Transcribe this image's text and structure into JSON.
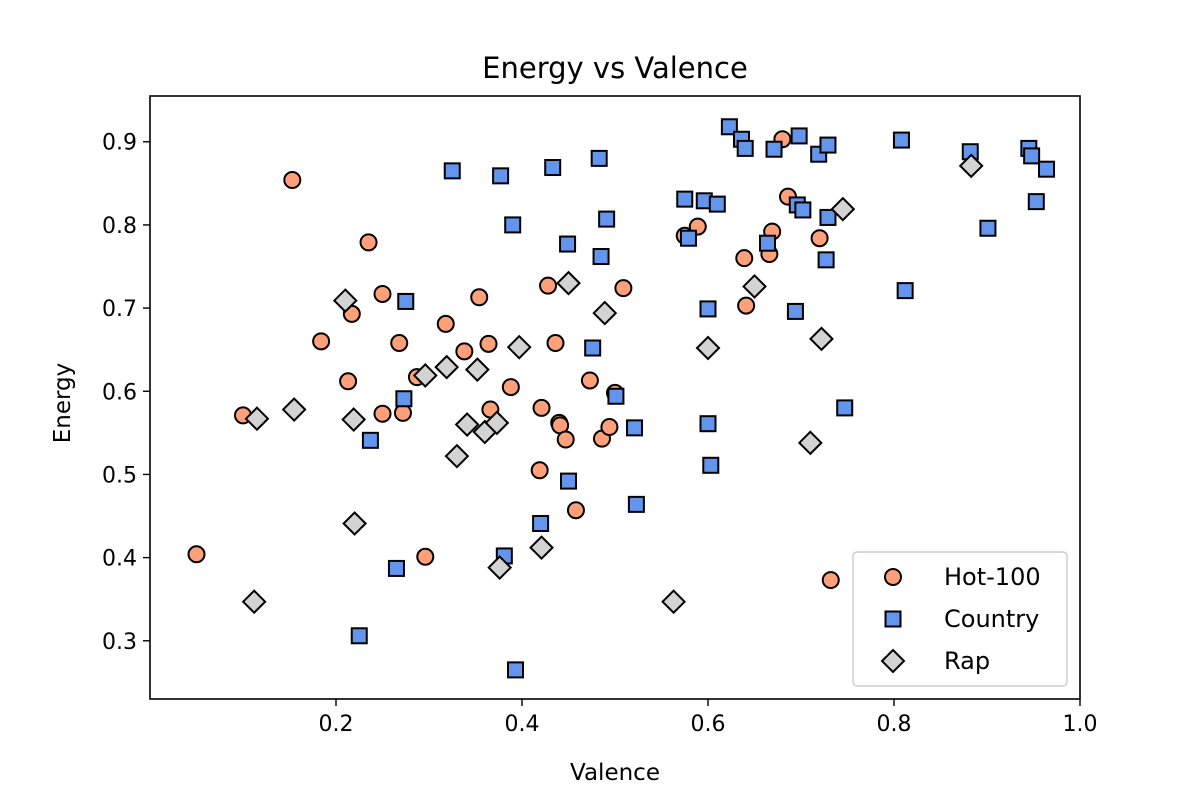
{
  "chart_data": {
    "type": "scatter",
    "title": "Energy vs Valence",
    "xlabel": "Valence",
    "ylabel": "Energy",
    "xlim": [
      0.0,
      1.0
    ],
    "ylim": [
      0.23,
      0.955
    ],
    "xticks": [
      "0.2",
      "0.4",
      "0.6",
      "0.8",
      "1.0"
    ],
    "yticks": [
      "0.3",
      "0.4",
      "0.5",
      "0.6",
      "0.7",
      "0.8",
      "0.9"
    ],
    "grid": false,
    "legend_position": "lower-right",
    "series": [
      {
        "name": "Hot-100",
        "marker": "circle",
        "color": "#FFA07A",
        "points": [
          [
            0.05,
            0.404
          ],
          [
            0.1,
            0.571
          ],
          [
            0.153,
            0.854
          ],
          [
            0.184,
            0.66
          ],
          [
            0.213,
            0.612
          ],
          [
            0.217,
            0.693
          ],
          [
            0.235,
            0.779
          ],
          [
            0.25,
            0.717
          ],
          [
            0.25,
            0.573
          ],
          [
            0.268,
            0.658
          ],
          [
            0.272,
            0.574
          ],
          [
            0.287,
            0.617
          ],
          [
            0.296,
            0.401
          ],
          [
            0.318,
            0.681
          ],
          [
            0.338,
            0.648
          ],
          [
            0.354,
            0.713
          ],
          [
            0.364,
            0.657
          ],
          [
            0.366,
            0.578
          ],
          [
            0.388,
            0.605
          ],
          [
            0.419,
            0.505
          ],
          [
            0.421,
            0.58
          ],
          [
            0.428,
            0.727
          ],
          [
            0.436,
            0.658
          ],
          [
            0.44,
            0.562
          ],
          [
            0.441,
            0.559
          ],
          [
            0.447,
            0.542
          ],
          [
            0.458,
            0.457
          ],
          [
            0.473,
            0.613
          ],
          [
            0.486,
            0.543
          ],
          [
            0.494,
            0.557
          ],
          [
            0.5,
            0.598
          ],
          [
            0.509,
            0.724
          ],
          [
            0.575,
            0.787
          ],
          [
            0.589,
            0.798
          ],
          [
            0.639,
            0.76
          ],
          [
            0.641,
            0.703
          ],
          [
            0.666,
            0.765
          ],
          [
            0.669,
            0.792
          ],
          [
            0.68,
            0.903
          ],
          [
            0.686,
            0.834
          ],
          [
            0.72,
            0.784
          ],
          [
            0.732,
            0.373
          ]
        ]
      },
      {
        "name": "Country",
        "marker": "square",
        "color": "#6495ED",
        "points": [
          [
            0.225,
            0.306
          ],
          [
            0.237,
            0.541
          ],
          [
            0.265,
            0.387
          ],
          [
            0.273,
            0.591
          ],
          [
            0.275,
            0.708
          ],
          [
            0.325,
            0.865
          ],
          [
            0.377,
            0.859
          ],
          [
            0.381,
            0.402
          ],
          [
            0.39,
            0.8
          ],
          [
            0.393,
            0.265
          ],
          [
            0.42,
            0.441
          ],
          [
            0.433,
            0.869
          ],
          [
            0.449,
            0.777
          ],
          [
            0.45,
            0.492
          ],
          [
            0.476,
            0.652
          ],
          [
            0.483,
            0.88
          ],
          [
            0.485,
            0.762
          ],
          [
            0.491,
            0.807
          ],
          [
            0.501,
            0.594
          ],
          [
            0.521,
            0.556
          ],
          [
            0.523,
            0.464
          ],
          [
            0.575,
            0.831
          ],
          [
            0.579,
            0.784
          ],
          [
            0.596,
            0.829
          ],
          [
            0.6,
            0.699
          ],
          [
            0.6,
            0.561
          ],
          [
            0.603,
            0.511
          ],
          [
            0.61,
            0.825
          ],
          [
            0.623,
            0.918
          ],
          [
            0.636,
            0.903
          ],
          [
            0.64,
            0.892
          ],
          [
            0.664,
            0.778
          ],
          [
            0.671,
            0.891
          ],
          [
            0.694,
            0.696
          ],
          [
            0.696,
            0.824
          ],
          [
            0.698,
            0.907
          ],
          [
            0.702,
            0.818
          ],
          [
            0.719,
            0.885
          ],
          [
            0.727,
            0.758
          ],
          [
            0.729,
            0.809
          ],
          [
            0.729,
            0.896
          ],
          [
            0.747,
            0.58
          ],
          [
            0.808,
            0.902
          ],
          [
            0.812,
            0.721
          ],
          [
            0.882,
            0.888
          ],
          [
            0.901,
            0.796
          ],
          [
            0.945,
            0.892
          ],
          [
            0.948,
            0.883
          ],
          [
            0.953,
            0.828
          ],
          [
            0.964,
            0.867
          ]
        ]
      },
      {
        "name": "Rap",
        "marker": "diamond",
        "color": "#D3D3D3",
        "points": [
          [
            0.112,
            0.347
          ],
          [
            0.115,
            0.567
          ],
          [
            0.155,
            0.578
          ],
          [
            0.21,
            0.709
          ],
          [
            0.219,
            0.566
          ],
          [
            0.22,
            0.441
          ],
          [
            0.296,
            0.619
          ],
          [
            0.319,
            0.629
          ],
          [
            0.33,
            0.522
          ],
          [
            0.341,
            0.56
          ],
          [
            0.352,
            0.626
          ],
          [
            0.36,
            0.551
          ],
          [
            0.373,
            0.562
          ],
          [
            0.376,
            0.388
          ],
          [
            0.397,
            0.653
          ],
          [
            0.421,
            0.412
          ],
          [
            0.45,
            0.73
          ],
          [
            0.489,
            0.694
          ],
          [
            0.563,
            0.347
          ],
          [
            0.6,
            0.652
          ],
          [
            0.65,
            0.726
          ],
          [
            0.71,
            0.538
          ],
          [
            0.722,
            0.663
          ],
          [
            0.745,
            0.819
          ],
          [
            0.883,
            0.871
          ]
        ]
      }
    ]
  }
}
